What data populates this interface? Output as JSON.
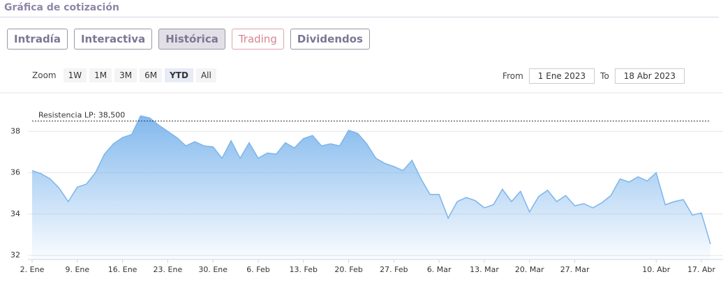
{
  "header": {
    "title": "Gráfica de cotización"
  },
  "tabs": [
    "Intradía",
    "Interactiva",
    "Histórica",
    "Trading",
    "Dividendos"
  ],
  "range_selector": {
    "label": "Zoom",
    "buttons": [
      "1W",
      "1M",
      "3M",
      "6M",
      "YTD",
      "All"
    ],
    "from_label": "From",
    "from": "1 Ene 2023",
    "to_label": "To",
    "to": "18 Abr 2023"
  },
  "chart_data": {
    "type": "area",
    "categories": [
      "2. Ene",
      null,
      null,
      null,
      null,
      "9. Ene",
      null,
      null,
      null,
      null,
      "16. Ene",
      null,
      null,
      null,
      null,
      "23. Ene",
      null,
      null,
      null,
      null,
      "30. Ene",
      null,
      null,
      null,
      null,
      "6. Feb",
      null,
      null,
      null,
      null,
      "13. Feb",
      null,
      null,
      null,
      null,
      "20. Feb",
      null,
      null,
      null,
      null,
      "27. Feb",
      null,
      null,
      null,
      null,
      "6. Mar",
      null,
      null,
      null,
      null,
      "13. Mar",
      null,
      null,
      null,
      null,
      "20. Mar",
      null,
      null,
      null,
      null,
      "27. Mar",
      null,
      null,
      null,
      null,
      null,
      null,
      null,
      null,
      "10. Abr",
      null,
      null,
      null,
      null,
      "17. Abr",
      null
    ],
    "values": [
      36.1,
      35.95,
      35.7,
      35.25,
      34.6,
      35.3,
      35.45,
      36.0,
      36.9,
      37.4,
      37.7,
      37.85,
      38.75,
      38.65,
      38.3,
      38.0,
      37.7,
      37.3,
      37.5,
      37.3,
      37.25,
      36.7,
      37.55,
      36.7,
      37.45,
      36.7,
      36.95,
      36.9,
      37.45,
      37.2,
      37.65,
      37.8,
      37.3,
      37.4,
      37.3,
      38.05,
      37.9,
      37.4,
      36.7,
      36.45,
      36.3,
      36.1,
      36.6,
      35.7,
      34.95,
      34.95,
      33.8,
      34.6,
      34.8,
      34.65,
      34.3,
      34.45,
      35.2,
      34.6,
      35.1,
      34.1,
      34.85,
      35.15,
      34.6,
      34.9,
      34.4,
      34.5,
      34.3,
      34.55,
      34.9,
      35.7,
      35.55,
      35.8,
      35.6,
      36.0,
      34.45,
      34.6,
      34.7,
      33.95,
      34.05,
      32.55
    ],
    "color": "#7cb5ec",
    "ylim": [
      31.8,
      39.8
    ],
    "yticks": [
      32,
      34,
      36,
      38
    ],
    "grid": true,
    "annotation": {
      "text": "Resistencia LP: 38,500",
      "value": 38.5
    }
  }
}
